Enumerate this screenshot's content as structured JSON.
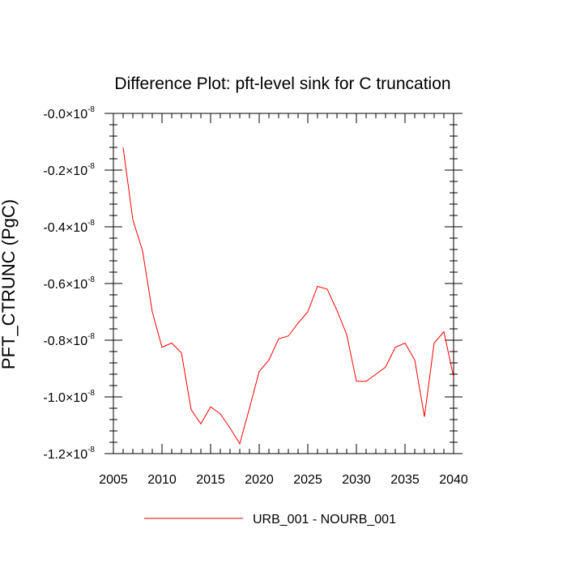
{
  "chart_data": {
    "type": "line",
    "title": "Difference Plot: pft-level sink for C truncation",
    "ylabel": "PFT_CTRUNC  (PgC)",
    "xlabel": "",
    "xlim": [
      2005,
      2040
    ],
    "ylim": [
      -1.2e-08,
      0.0
    ],
    "xticks": [
      2005,
      2010,
      2015,
      2020,
      2025,
      2030,
      2035,
      2040
    ],
    "yticks": [
      {
        "value": 0.0,
        "mantissa": "-0.0",
        "exponent": "-8"
      },
      {
        "value": -2e-09,
        "mantissa": "-0.2",
        "exponent": "-8"
      },
      {
        "value": -4e-09,
        "mantissa": "-0.4",
        "exponent": "-8"
      },
      {
        "value": -6e-09,
        "mantissa": "-0.6",
        "exponent": "-8"
      },
      {
        "value": -8e-09,
        "mantissa": "-0.8",
        "exponent": "-8"
      },
      {
        "value": -1e-08,
        "mantissa": "-1.0",
        "exponent": "-8"
      },
      {
        "value": -1.2e-08,
        "mantissa": "-1.2",
        "exponent": "-8"
      }
    ],
    "times_sign": "×10",
    "grid": false,
    "legend_position": "bottom",
    "series": [
      {
        "name": "URB_001 - NOURB_001",
        "color": "#ff0000",
        "x": [
          2006,
          2007,
          2008,
          2009,
          2010,
          2011,
          2012,
          2013,
          2014,
          2015,
          2016,
          2017,
          2018,
          2019,
          2020,
          2021,
          2022,
          2023,
          2024,
          2025,
          2026,
          2027,
          2028,
          2029,
          2030,
          2031,
          2032,
          2033,
          2034,
          2035,
          2036,
          2037,
          2038,
          2039,
          2040
        ],
        "y": [
          -1.2e-09,
          -3.75e-09,
          -4.85e-09,
          -7e-09,
          -8.25e-09,
          -8.1e-09,
          -8.45e-09,
          -1.045e-08,
          -1.095e-08,
          -1.035e-08,
          -1.06e-08,
          -1.11e-08,
          -1.165e-08,
          -1.04e-08,
          -9.1e-09,
          -8.7e-09,
          -7.95e-09,
          -7.85e-09,
          -7.4e-09,
          -7e-09,
          -6.1e-09,
          -6.2e-09,
          -6.95e-09,
          -7.8e-09,
          -9.45e-09,
          -9.45e-09,
          -9.2e-09,
          -8.95e-09,
          -8.25e-09,
          -8.1e-09,
          -8.7e-09,
          -1.07e-08,
          -8.1e-09,
          -7.7e-09,
          -9.3e-09
        ]
      }
    ]
  }
}
